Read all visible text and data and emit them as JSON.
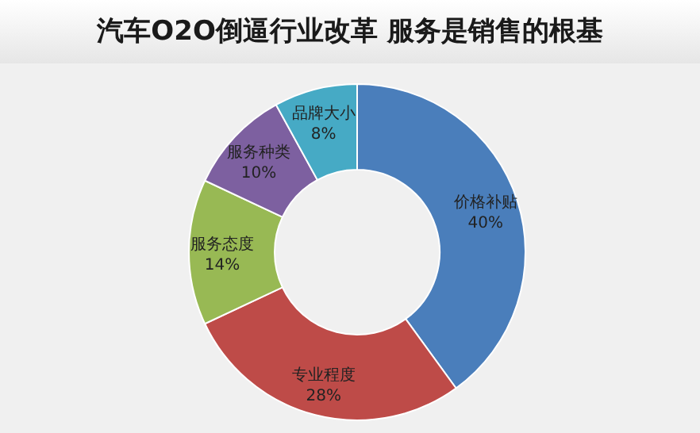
{
  "chart_data": {
    "type": "donut",
    "title": "汽车O2O倒逼行业改革 服务是销售的根基",
    "categories": [
      "价格补贴",
      "专业程度",
      "服务态度",
      "服务种类",
      "品牌大小"
    ],
    "values": [
      40,
      28,
      14,
      10,
      8
    ],
    "colors": [
      "#4a7ebb",
      "#be4b48",
      "#98b954",
      "#7d60a0",
      "#46aac5"
    ],
    "value_labels": [
      "40%",
      "28%",
      "14%",
      "10%",
      "8%"
    ]
  }
}
